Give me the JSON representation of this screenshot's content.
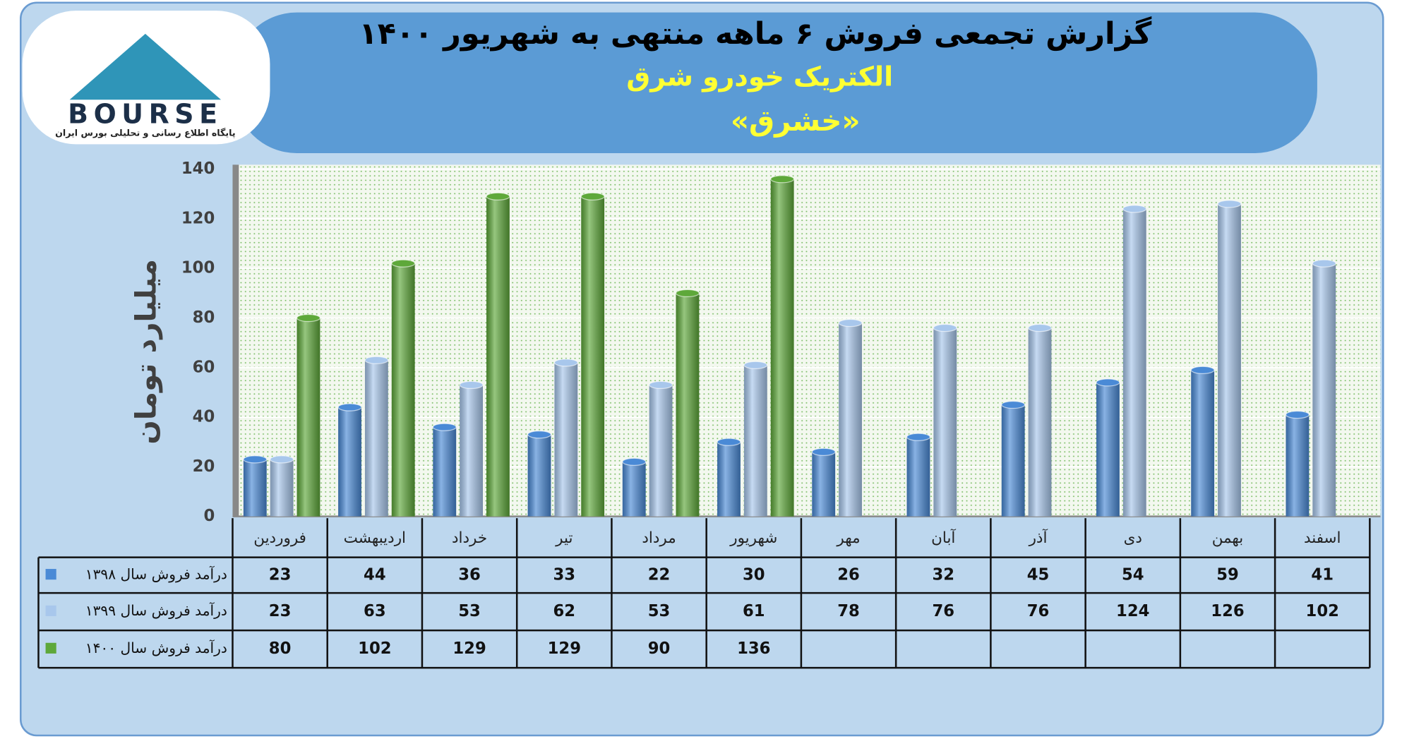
{
  "chart_data": {
    "type": "bar",
    "title": "گزارش تجمعی فروش ۶ ماهه منتهی به شهریور ۱۴۰۰",
    "subtitle": "الکتریک خودرو شرق",
    "symbol": "«خشرق»",
    "logo_text": "BOURSE",
    "logo_caption": "پایگاه اطلاع رسانی و تحلیلی بورس ایران",
    "y_label": "میلیارد تومان",
    "categories": [
      "فروردین",
      "اردیبهشت",
      "خرداد",
      "تیر",
      "مرداد",
      "شهریور",
      "مهر",
      "آبان",
      "آذر",
      "دی",
      "بهمن",
      "اسفند"
    ],
    "series": [
      {
        "name": "درآمد فروش سال ۱۳۹۸",
        "color": "#4a8ad6",
        "values": [
          23,
          44,
          36,
          33,
          22,
          30,
          26,
          32,
          45,
          54,
          59,
          41
        ]
      },
      {
        "name": "درآمد فروش سال ۱۳۹۹",
        "color": "#a8c7ec",
        "values": [
          23,
          63,
          53,
          62,
          53,
          61,
          78,
          76,
          76,
          124,
          126,
          102
        ]
      },
      {
        "name": "درآمد فروش سال ۱۴۰۰",
        "color": "#5ea83a",
        "values": [
          80,
          102,
          129,
          129,
          90,
          136,
          null,
          null,
          null,
          null,
          null,
          null
        ]
      }
    ],
    "ylim": [
      0,
      140
    ],
    "yticks": [
      0,
      20,
      40,
      60,
      80,
      100,
      120,
      140
    ],
    "grid": true
  }
}
